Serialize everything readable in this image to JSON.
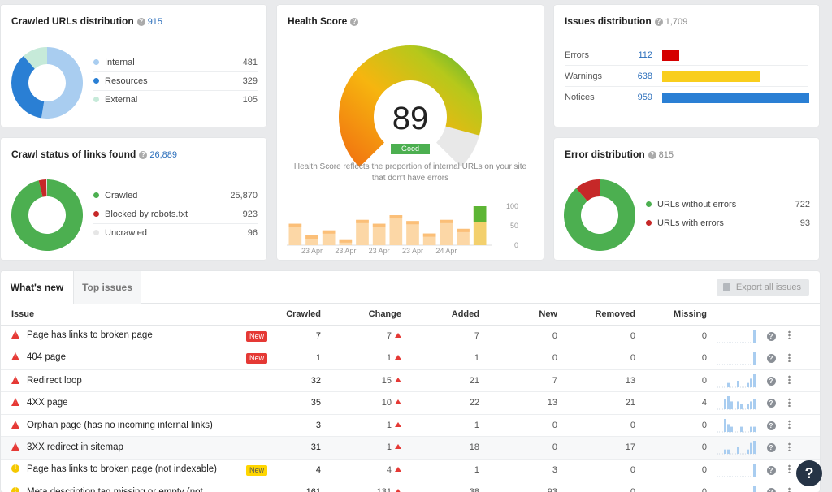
{
  "crawled": {
    "title": "Crawled URLs distribution",
    "count": "915",
    "items": [
      {
        "label": "Internal",
        "value": "481",
        "color": "#a9cdf0"
      },
      {
        "label": "Resources",
        "value": "329",
        "color": "#2a7fd4"
      },
      {
        "label": "External",
        "value": "105",
        "color": "#c6ead9"
      }
    ]
  },
  "crawl_status": {
    "title": "Crawl status of links found",
    "count": "26,889",
    "items": [
      {
        "label": "Crawled",
        "value": "25,870",
        "color": "#4caf50"
      },
      {
        "label": "Blocked by robots.txt",
        "value": "923",
        "color": "#c62828"
      },
      {
        "label": "Uncrawled",
        "value": "96",
        "color": "#e6e6e6"
      }
    ]
  },
  "health": {
    "title": "Health Score",
    "score": "89",
    "status": "Good",
    "description": "Health Score reflects the proportion of internal URLs on your site that don't have errors",
    "history": [
      55,
      25,
      38,
      15,
      65,
      55,
      77,
      62,
      30,
      65,
      42,
      100
    ],
    "y_ticks": [
      "100",
      "50",
      "0"
    ],
    "x_ticks": [
      "23 Apr",
      "23 Apr",
      "23 Apr",
      "23 Apr",
      "24 Apr"
    ]
  },
  "issues_dist": {
    "title": "Issues distribution",
    "count": "1,709",
    "items": [
      {
        "label": "Errors",
        "value": "112",
        "color": "#d50000",
        "fraction": 0.117
      },
      {
        "label": "Warnings",
        "value": "638",
        "color": "#f9ce1d",
        "fraction": 0.666
      },
      {
        "label": "Notices",
        "value": "959",
        "color": "#2a7fd4",
        "fraction": 1.0
      }
    ]
  },
  "error_dist": {
    "title": "Error distribution",
    "count": "815",
    "items": [
      {
        "label": "URLs without errors",
        "value": "722",
        "color": "#4caf50"
      },
      {
        "label": "URLs with errors",
        "value": "93",
        "color": "#c62828"
      }
    ]
  },
  "tabs": [
    {
      "label": "What's new"
    },
    {
      "label": "Top issues"
    }
  ],
  "export_label": "Export all issues",
  "columns": [
    "Issue",
    "Crawled",
    "Change",
    "Added",
    "New",
    "Removed",
    "Missing"
  ],
  "rows": [
    {
      "type": "error",
      "name": "Page has links to broken page",
      "badge": "New",
      "badge_color": "red",
      "crawled": "7",
      "change": "7",
      "added": "7",
      "new": "0",
      "removed": "0",
      "missing": "0",
      "spark": [
        0,
        0,
        0,
        0,
        0,
        0,
        0,
        0,
        0,
        0,
        0,
        6
      ]
    },
    {
      "type": "error",
      "name": "404 page",
      "badge": "New",
      "badge_color": "red",
      "crawled": "1",
      "change": "1",
      "added": "1",
      "new": "0",
      "removed": "0",
      "missing": "0",
      "spark": [
        0,
        0,
        0,
        0,
        0,
        0,
        0,
        0,
        0,
        0,
        0,
        6
      ]
    },
    {
      "type": "error",
      "name": "Redirect loop",
      "badge": "",
      "badge_color": "",
      "crawled": "32",
      "change": "15",
      "added": "21",
      "new": "7",
      "removed": "13",
      "missing": "0",
      "spark": [
        0,
        0,
        0,
        2,
        0,
        0,
        3,
        0,
        0,
        2,
        4,
        6
      ]
    },
    {
      "type": "error",
      "name": "4XX page",
      "badge": "",
      "badge_color": "",
      "crawled": "35",
      "change": "10",
      "added": "22",
      "new": "13",
      "removed": "21",
      "missing": "4",
      "spark": [
        0,
        0,
        4,
        5,
        3,
        0,
        3,
        2,
        0,
        2,
        3,
        4
      ]
    },
    {
      "type": "error",
      "name": "Orphan page (has no incoming internal links)",
      "badge": "",
      "badge_color": "",
      "crawled": "3",
      "change": "1",
      "added": "1",
      "new": "0",
      "removed": "0",
      "missing": "0",
      "spark": [
        0,
        0,
        5,
        3,
        2,
        0,
        0,
        2,
        0,
        0,
        2,
        2
      ]
    },
    {
      "type": "error",
      "name": "3XX redirect in sitemap",
      "badge": "",
      "badge_color": "",
      "crawled": "31",
      "change": "1",
      "added": "18",
      "new": "0",
      "removed": "17",
      "missing": "0",
      "spark": [
        0,
        0,
        2,
        2,
        0,
        0,
        3,
        0,
        0,
        2,
        5,
        6
      ]
    },
    {
      "type": "notice",
      "name": "Page has links to broken page (not indexable)",
      "badge": "New",
      "badge_color": "yellow",
      "crawled": "4",
      "change": "4",
      "added": "1",
      "new": "3",
      "removed": "0",
      "missing": "0",
      "spark": [
        0,
        0,
        0,
        0,
        0,
        0,
        0,
        0,
        0,
        0,
        0,
        6
      ]
    },
    {
      "type": "warning",
      "name": "Meta description tag missing or empty (not",
      "badge": "",
      "badge_color": "",
      "crawled": "161",
      "change": "131",
      "added": "38",
      "new": "93",
      "removed": "0",
      "missing": "0",
      "spark": [
        0,
        0,
        0,
        0,
        0,
        0,
        0,
        0,
        0,
        0,
        0,
        6
      ]
    }
  ],
  "help_fab": "?"
}
